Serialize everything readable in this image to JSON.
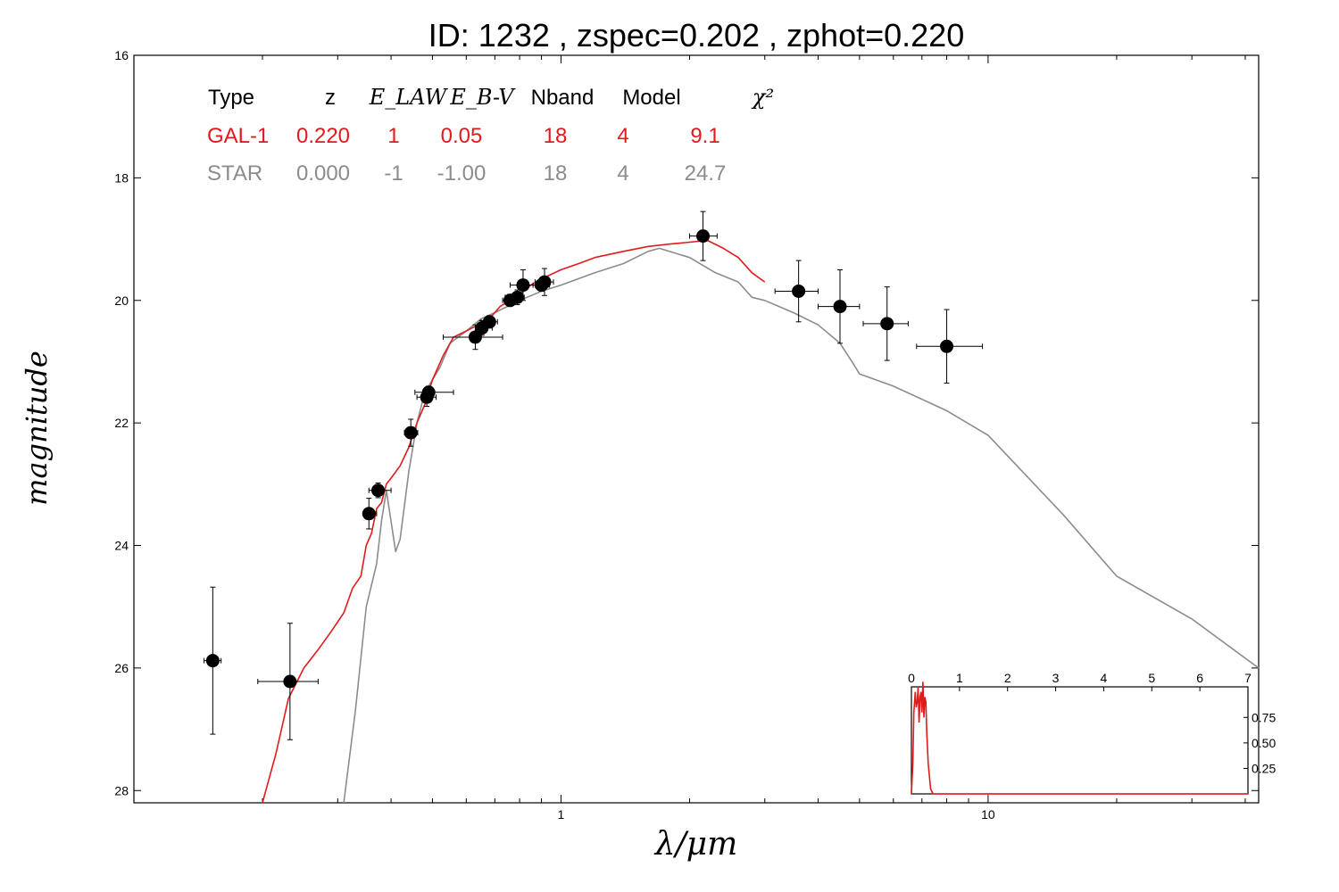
{
  "chart_data": {
    "type": "scatter",
    "title": "ID:  1232  , zspec=0.202 , zphot=0.220",
    "xlabel": "λ/μm",
    "ylabel": "magnitude",
    "x_scale": "log",
    "xlim": [
      0.1,
      43
    ],
    "ylim": [
      28.2,
      16
    ],
    "y_inverted": true,
    "xticks": [
      {
        "v": 1,
        "label": "1"
      },
      {
        "v": 10,
        "label": "10"
      }
    ],
    "yticks": [
      16,
      18,
      20,
      22,
      24,
      26,
      28
    ],
    "colors": {
      "gal": "#e31a1c",
      "star": "#8c8c8c",
      "points": "#000000"
    },
    "table": {
      "headers": [
        "Type",
        "z",
        "E_LAW",
        "E_B-V",
        "Nband",
        "Model",
        "χ²"
      ],
      "rows": [
        {
          "name": "gal",
          "cells": [
            "GAL-1",
            "0.220",
            "1",
            "0.05",
            "18",
            "4",
            "9.1"
          ]
        },
        {
          "name": "star",
          "cells": [
            "STAR",
            "0.000",
            "-1",
            "-1.00",
            "18",
            "4",
            "24.7"
          ]
        }
      ]
    },
    "points": [
      {
        "x": 0.153,
        "y": 25.88,
        "xlo": 0.146,
        "xhi": 0.16,
        "err": 1.2
      },
      {
        "x": 0.232,
        "y": 26.22,
        "xlo": 0.195,
        "xhi": 0.27,
        "err": 0.95
      },
      {
        "x": 0.355,
        "y": 23.48,
        "xlo": 0.345,
        "xhi": 0.37,
        "err": 0.25
      },
      {
        "x": 0.373,
        "y": 23.1,
        "xlo": 0.355,
        "xhi": 0.4,
        "err": 0.12
      },
      {
        "x": 0.445,
        "y": 22.16,
        "xlo": 0.43,
        "xhi": 0.462,
        "err": 0.22
      },
      {
        "x": 0.485,
        "y": 21.58,
        "xlo": 0.46,
        "xhi": 0.51,
        "err": 0.15
      },
      {
        "x": 0.49,
        "y": 21.5,
        "xlo": 0.455,
        "xhi": 0.56,
        "err": 0.1
      },
      {
        "x": 0.63,
        "y": 20.6,
        "xlo": 0.53,
        "xhi": 0.73,
        "err": 0.2
      },
      {
        "x": 0.653,
        "y": 20.45,
        "xlo": 0.63,
        "xhi": 0.69,
        "err": 0.12
      },
      {
        "x": 0.68,
        "y": 20.35,
        "xlo": 0.65,
        "xhi": 0.71,
        "err": 0.1
      },
      {
        "x": 0.76,
        "y": 20.0,
        "xlo": 0.73,
        "xhi": 0.8,
        "err": 0.1
      },
      {
        "x": 0.79,
        "y": 19.95,
        "xlo": 0.74,
        "xhi": 0.82,
        "err": 0.12
      },
      {
        "x": 0.815,
        "y": 19.75,
        "xlo": 0.76,
        "xhi": 0.87,
        "err": 0.25
      },
      {
        "x": 0.9,
        "y": 19.75,
        "xlo": 0.86,
        "xhi": 0.94,
        "err": 0.1
      },
      {
        "x": 0.915,
        "y": 19.7,
        "xlo": 0.87,
        "xhi": 0.96,
        "err": 0.22
      },
      {
        "x": 2.15,
        "y": 18.95,
        "xlo": 2.0,
        "xhi": 2.32,
        "err": 0.4
      },
      {
        "x": 3.6,
        "y": 19.85,
        "xlo": 3.17,
        "xhi": 4.0,
        "err": 0.5
      },
      {
        "x": 4.5,
        "y": 20.1,
        "xlo": 4.0,
        "xhi": 5.0,
        "err": 0.6
      },
      {
        "x": 5.8,
        "y": 20.38,
        "xlo": 5.1,
        "xhi": 6.5,
        "err": 0.6
      },
      {
        "x": 8.0,
        "y": 20.75,
        "xlo": 6.8,
        "xhi": 9.7,
        "err": 0.6
      }
    ],
    "gal_model": {
      "name": "GAL-1",
      "x": [
        0.2,
        0.215,
        0.23,
        0.25,
        0.27,
        0.29,
        0.31,
        0.325,
        0.34,
        0.35,
        0.36,
        0.37,
        0.38,
        0.39,
        0.4,
        0.42,
        0.44,
        0.46,
        0.48,
        0.5,
        0.53,
        0.56,
        0.6,
        0.64,
        0.68,
        0.72,
        0.76,
        0.8,
        0.85,
        0.9,
        1.0,
        1.1,
        1.2,
        1.4,
        1.6,
        1.8,
        2.0,
        2.2,
        2.4,
        2.6,
        2.8,
        3.0
      ],
      "y": [
        28.2,
        27.4,
        26.5,
        26.0,
        25.7,
        25.4,
        25.1,
        24.7,
        24.5,
        24.0,
        23.8,
        23.4,
        23.3,
        23.0,
        22.9,
        22.7,
        22.4,
        22.0,
        21.7,
        21.3,
        20.9,
        20.6,
        20.5,
        20.4,
        20.3,
        20.1,
        20.0,
        19.9,
        19.75,
        19.65,
        19.5,
        19.4,
        19.3,
        19.2,
        19.12,
        19.08,
        19.05,
        19.02,
        19.15,
        19.3,
        19.55,
        19.7
      ]
    },
    "star_model": {
      "name": "STAR",
      "x": [
        0.31,
        0.33,
        0.35,
        0.37,
        0.38,
        0.39,
        0.41,
        0.42,
        0.44,
        0.46,
        0.48,
        0.5,
        0.52,
        0.55,
        0.6,
        0.65,
        0.7,
        0.8,
        0.9,
        1.0,
        1.2,
        1.4,
        1.6,
        1.7,
        2.0,
        2.3,
        2.6,
        2.8,
        3.0,
        3.5,
        4.0,
        4.5,
        4.8,
        5.0,
        6.0,
        8.0,
        10.0,
        15.0,
        20.0,
        30.0,
        43.0
      ],
      "y": [
        28.2,
        26.7,
        25.0,
        24.3,
        23.6,
        23.1,
        24.1,
        23.9,
        22.8,
        22.0,
        21.5,
        21.3,
        21.1,
        20.7,
        20.5,
        20.3,
        20.2,
        20.0,
        19.85,
        19.75,
        19.55,
        19.4,
        19.2,
        19.15,
        19.3,
        19.55,
        19.7,
        19.95,
        20.0,
        20.2,
        20.4,
        20.7,
        21.0,
        21.2,
        21.4,
        21.8,
        22.2,
        23.5,
        24.5,
        25.2,
        26.0
      ]
    },
    "inset": {
      "xlim": [
        0,
        7
      ],
      "xticks": [
        0,
        1,
        2,
        3,
        4,
        5,
        6,
        7
      ],
      "yticks": [
        "0.25",
        "0.50",
        "0.75"
      ],
      "ylim": [
        0,
        1.05
      ],
      "pdf_x": [
        0,
        0.03,
        0.05,
        0.08,
        0.1,
        0.12,
        0.14,
        0.16,
        0.18,
        0.2,
        0.22,
        0.24,
        0.26,
        0.28,
        0.3,
        0.32,
        0.35,
        0.4,
        0.45,
        7
      ],
      "pdf_y": [
        0,
        0.3,
        0.8,
        1.0,
        0.85,
        0.9,
        1.05,
        0.7,
        0.95,
        1.0,
        0.8,
        1.1,
        0.75,
        0.95,
        0.9,
        0.6,
        0.3,
        0.05,
        0.0,
        0.0
      ]
    }
  }
}
